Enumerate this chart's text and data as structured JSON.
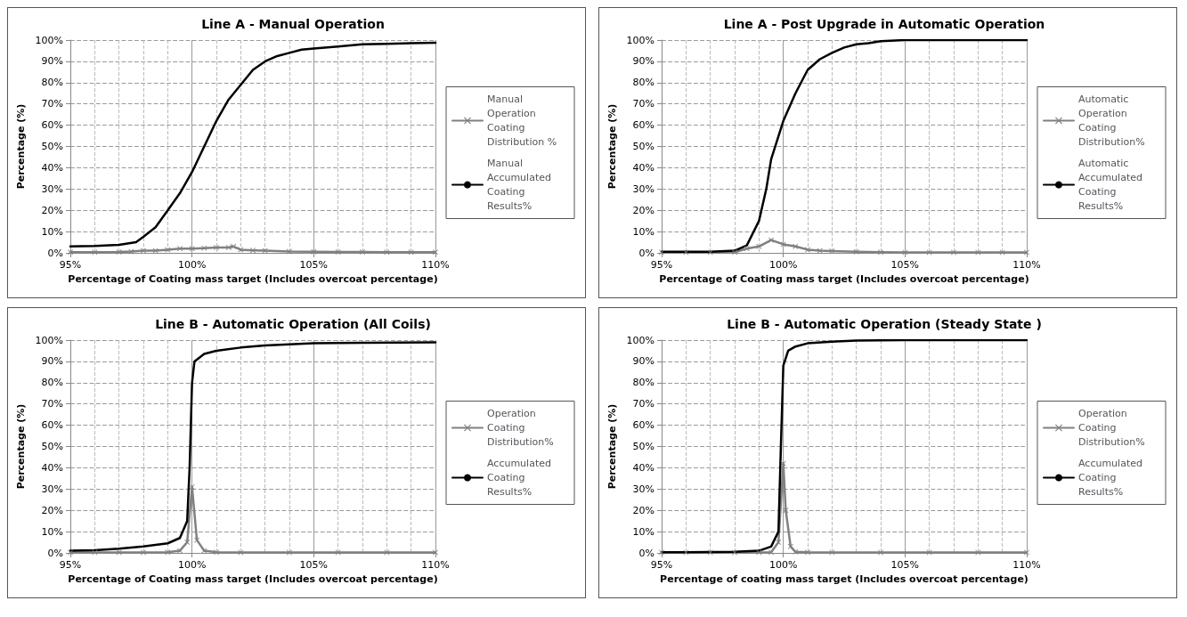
{
  "chart_data": [
    {
      "type": "line",
      "title": "Line A - Manual Operation",
      "xlabel": "Percentage of Coating mass target (Includes overcoat percentage)",
      "ylabel": "Percentage (%)",
      "xlim": [
        95,
        110
      ],
      "xticks": [
        {
          "value": 95,
          "label": "95%"
        },
        {
          "value": 100,
          "label": "100%"
        },
        {
          "value": 105,
          "label": "105%"
        },
        {
          "value": 110,
          "label": "110%"
        }
      ],
      "ylim": [
        0,
        100
      ],
      "yticks": [
        {
          "value": 0,
          "label": "0%"
        },
        {
          "value": 10,
          "label": "10%"
        },
        {
          "value": 20,
          "label": "20%"
        },
        {
          "value": 30,
          "label": "30%"
        },
        {
          "value": 40,
          "label": "40%"
        },
        {
          "value": 50,
          "label": "50%"
        },
        {
          "value": 60,
          "label": "60%"
        },
        {
          "value": 70,
          "label": "70%"
        },
        {
          "value": 80,
          "label": "80%"
        },
        {
          "value": 90,
          "label": "90%"
        },
        {
          "value": 100,
          "label": "100%"
        }
      ],
      "grid": true,
      "legend": "right",
      "series": [
        {
          "name": "Manual Operation Coating Distribution %",
          "color": "#808080",
          "marker": "cross",
          "x": [
            95,
            96,
            97,
            97.5,
            98,
            98.5,
            99,
            99.5,
            100,
            100.5,
            101,
            101.5,
            101.7,
            102,
            102.5,
            103,
            104,
            105,
            106,
            107,
            108,
            109,
            110
          ],
          "values": [
            0.3,
            0.3,
            0.4,
            0.6,
            1,
            1,
            1.5,
            2,
            2,
            2.2,
            2.5,
            2.5,
            3,
            1.5,
            1.2,
            1,
            0.6,
            0.5,
            0.4,
            0.4,
            0.3,
            0.3,
            0.3
          ]
        },
        {
          "name": "Manual Accumulated Coating Results%",
          "color": "#000000",
          "marker": "none",
          "x": [
            95,
            96,
            97,
            97.7,
            98,
            98.5,
            99,
            99.5,
            100,
            100.5,
            101,
            101.5,
            102,
            102.5,
            103,
            103.5,
            104,
            104.5,
            105,
            106,
            107,
            108,
            109,
            110
          ],
          "values": [
            3,
            3.2,
            3.8,
            5,
            7.5,
            12,
            20,
            28,
            38,
            50,
            62,
            72,
            79,
            86,
            90,
            92.5,
            94,
            95.5,
            96,
            97,
            98,
            98.2,
            98.5,
            98.7
          ]
        }
      ]
    },
    {
      "type": "line",
      "title": "Line A - Post Upgrade in Automatic Operation",
      "xlabel": "Percentage of Coating mass target (Includes overcoat percentage)",
      "ylabel": "Percentage (%)",
      "xlim": [
        95,
        110
      ],
      "xticks": [
        {
          "value": 95,
          "label": "95%"
        },
        {
          "value": 100,
          "label": "100%"
        },
        {
          "value": 105,
          "label": "105%"
        },
        {
          "value": 110,
          "label": "110%"
        }
      ],
      "ylim": [
        0,
        100
      ],
      "yticks": [
        {
          "value": 0,
          "label": "0%"
        },
        {
          "value": 10,
          "label": "10%"
        },
        {
          "value": 20,
          "label": "20%"
        },
        {
          "value": 30,
          "label": "30%"
        },
        {
          "value": 40,
          "label": "40%"
        },
        {
          "value": 50,
          "label": "50%"
        },
        {
          "value": 60,
          "label": "60%"
        },
        {
          "value": 70,
          "label": "70%"
        },
        {
          "value": 80,
          "label": "80%"
        },
        {
          "value": 90,
          "label": "90%"
        },
        {
          "value": 100,
          "label": "100%"
        }
      ],
      "grid": true,
      "legend": "right",
      "series": [
        {
          "name": "Automatic Operation Coating Distribution%",
          "color": "#808080",
          "marker": "cross",
          "x": [
            95,
            96,
            97,
            98,
            98.5,
            99,
            99.5,
            100,
            100.5,
            101,
            101.5,
            102,
            103,
            104,
            105,
            106,
            107,
            108,
            109,
            110
          ],
          "values": [
            0.2,
            0.2,
            0.2,
            0.3,
            2,
            3,
            6,
            4,
            3,
            1.5,
            1,
            0.8,
            0.5,
            0.3,
            0.2,
            0.2,
            0.2,
            0.2,
            0.2,
            0.2
          ]
        },
        {
          "name": "Automatic Accumulated Coating Results%",
          "color": "#000000",
          "marker": "none",
          "x": [
            95,
            96,
            97,
            98,
            98.5,
            99,
            99.3,
            99.5,
            100,
            100.5,
            101,
            101.5,
            102,
            102.5,
            103,
            103.5,
            104,
            105,
            106,
            108,
            110
          ],
          "values": [
            0.5,
            0.5,
            0.5,
            1,
            3.5,
            15,
            30,
            44,
            62,
            75,
            86,
            91,
            94,
            96.5,
            98,
            98.5,
            99.5,
            100,
            100,
            100,
            100
          ]
        }
      ]
    },
    {
      "type": "line",
      "title": "Line B - Automatic Operation (All Coils)",
      "xlabel": "Percentage of Coating mass target (Includes overcoat percentage)",
      "ylabel": "Percentage (%)",
      "xlim": [
        95,
        110
      ],
      "xticks": [
        {
          "value": 95,
          "label": "95%"
        },
        {
          "value": 100,
          "label": "100%"
        },
        {
          "value": 105,
          "label": "105%"
        },
        {
          "value": 110,
          "label": "110%"
        }
      ],
      "ylim": [
        0,
        100
      ],
      "yticks": [
        {
          "value": 0,
          "label": "0%"
        },
        {
          "value": 10,
          "label": "10%"
        },
        {
          "value": 20,
          "label": "20%"
        },
        {
          "value": 30,
          "label": "30%"
        },
        {
          "value": 40,
          "label": "40%"
        },
        {
          "value": 50,
          "label": "50%"
        },
        {
          "value": 60,
          "label": "60%"
        },
        {
          "value": 70,
          "label": "70%"
        },
        {
          "value": 80,
          "label": "80%"
        },
        {
          "value": 90,
          "label": "90%"
        },
        {
          "value": 100,
          "label": "100%"
        }
      ],
      "grid": true,
      "legend": "right",
      "series": [
        {
          "name": "Operation Coating Distribution%",
          "color": "#808080",
          "marker": "cross",
          "x": [
            95,
            96,
            97,
            98,
            99,
            99.5,
            99.8,
            100,
            100.2,
            100.5,
            101,
            102,
            104,
            106,
            108,
            110
          ],
          "values": [
            0.2,
            0.2,
            0.2,
            0.2,
            0.3,
            1,
            5,
            31,
            6,
            1,
            0.3,
            0.2,
            0.2,
            0.2,
            0.2,
            0.2
          ]
        },
        {
          "name": "Accumulated Coating Results%",
          "color": "#000000",
          "marker": "none",
          "x": [
            95,
            96,
            97,
            98,
            99,
            99.5,
            99.8,
            99.9,
            100,
            100.1,
            100.5,
            101,
            102,
            103,
            105,
            107,
            110
          ],
          "values": [
            1,
            1.3,
            2,
            3,
            4.5,
            7,
            15,
            40,
            80,
            90,
            93.5,
            95,
            96.5,
            97.5,
            98.5,
            98.7,
            99
          ]
        }
      ]
    },
    {
      "type": "line",
      "title": "Line B - Automatic Operation (Steady State )",
      "xlabel": "Percentage of coating mass target (Includes overcoat percentage)",
      "ylabel": "Percentage (%)",
      "xlim": [
        95,
        110
      ],
      "xticks": [
        {
          "value": 95,
          "label": "95%"
        },
        {
          "value": 100,
          "label": "100%"
        },
        {
          "value": 105,
          "label": "105%"
        },
        {
          "value": 110,
          "label": "110%"
        }
      ],
      "ylim": [
        0,
        100
      ],
      "yticks": [
        {
          "value": 0,
          "label": "0%"
        },
        {
          "value": 10,
          "label": "10%"
        },
        {
          "value": 20,
          "label": "20%"
        },
        {
          "value": 30,
          "label": "30%"
        },
        {
          "value": 40,
          "label": "40%"
        },
        {
          "value": 50,
          "label": "50%"
        },
        {
          "value": 60,
          "label": "60%"
        },
        {
          "value": 70,
          "label": "70%"
        },
        {
          "value": 80,
          "label": "80%"
        },
        {
          "value": 90,
          "label": "90%"
        },
        {
          "value": 100,
          "label": "100%"
        }
      ],
      "grid": true,
      "legend": "right",
      "series": [
        {
          "name": "Operation Coating Distribution%",
          "color": "#808080",
          "marker": "cross",
          "x": [
            95,
            96,
            97,
            98,
            99,
            99.5,
            99.8,
            100,
            100.1,
            100.3,
            100.5,
            101,
            102,
            104,
            106,
            108,
            110
          ],
          "values": [
            0.2,
            0.2,
            0.2,
            0.2,
            0.2,
            0.3,
            5,
            42,
            20,
            3,
            0.5,
            0.3,
            0.2,
            0.2,
            0.2,
            0.2,
            0.2
          ]
        },
        {
          "name": "Accumulated Coating Results%",
          "color": "#000000",
          "marker": "none",
          "x": [
            95,
            96,
            97,
            98,
            99,
            99.5,
            99.8,
            99.9,
            100,
            100.2,
            100.5,
            101,
            102,
            103,
            105,
            107,
            110
          ],
          "values": [
            0.3,
            0.3,
            0.4,
            0.5,
            1,
            3,
            10,
            50,
            88,
            95,
            97,
            98.5,
            99.3,
            99.8,
            100,
            100,
            100
          ]
        }
      ]
    }
  ]
}
